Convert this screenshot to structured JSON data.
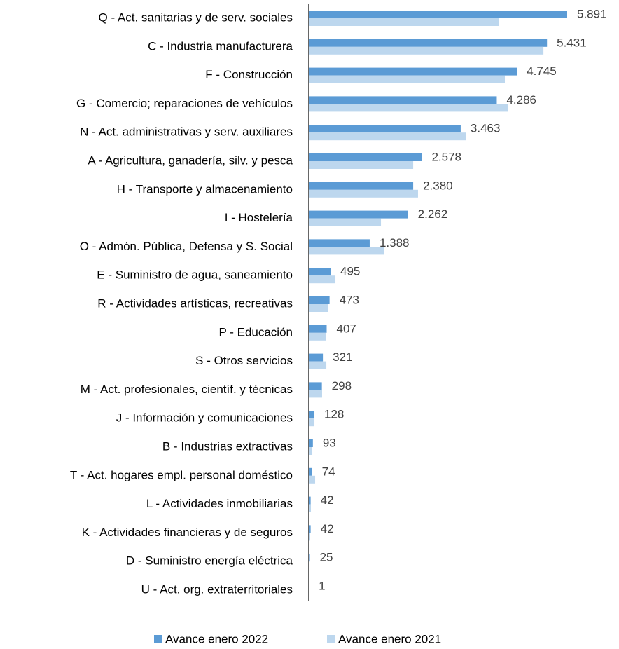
{
  "chart_data": {
    "type": "bar",
    "orientation": "horizontal",
    "categories": [
      "Q - Act. sanitarias y de serv. sociales",
      "C - Industria manufacturera",
      "F - Construcción",
      "G - Comercio; reparaciones de vehículos",
      "N - Act. administrativas y serv. auxiliares",
      "A - Agricultura, ganadería, silv. y pesca",
      "H - Transporte y almacenamiento",
      "I - Hostelería",
      "O - Admón. Pública, Defensa y S. Social ",
      "E - Suministro de agua, saneamiento",
      "R - Actividades artísticas, recreativas",
      "P - Educación",
      "S - Otros servicios",
      "M - Act. profesionales, científ. y técnicas",
      "J - Información y comunicaciones",
      "B - Industrias extractivas",
      "T - Act. hogares empl. personal doméstico",
      "L - Actividades inmobiliarias",
      "K - Actividades financieras y de seguros",
      "D - Suministro energía eléctrica",
      "U - Act. org. extraterritoriales"
    ],
    "series": [
      {
        "name": "Avance enero 2022",
        "color": "#5b9bd5",
        "values": [
          5891,
          5431,
          4745,
          4286,
          3463,
          2578,
          2380,
          2262,
          1388,
          495,
          473,
          407,
          321,
          298,
          128,
          93,
          74,
          42,
          42,
          25,
          1
        ],
        "value_labels": [
          "5.891",
          "5.431",
          "4.745",
          "4.286",
          "3.463",
          "2.578",
          "2.380",
          "2.262",
          "1.388",
          "495",
          "473",
          "407",
          "321",
          "298",
          "128",
          "93",
          "74",
          "42",
          "42",
          "25",
          "1"
        ]
      },
      {
        "name": "Avance enero 2021",
        "color": "#bdd7ee",
        "values": [
          4330,
          5350,
          4470,
          4535,
          3577,
          2380,
          2490,
          1645,
          1709,
          607,
          431,
          383,
          400,
          303,
          128,
          80,
          144,
          48,
          32,
          16,
          0
        ]
      }
    ],
    "legend": "bottom"
  }
}
